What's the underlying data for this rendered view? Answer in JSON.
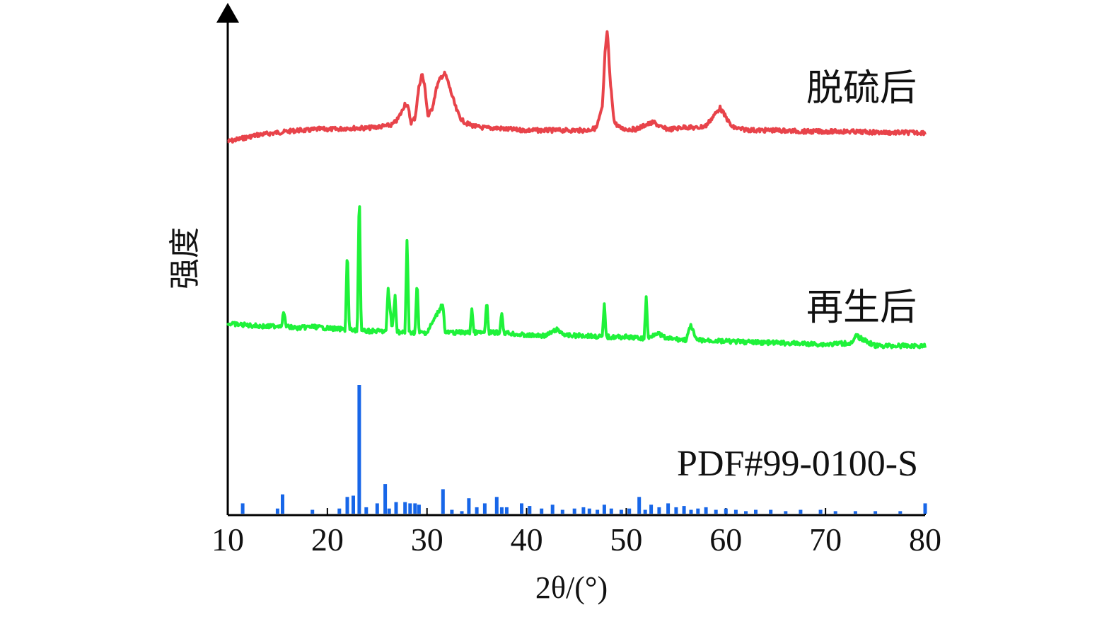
{
  "chart_data": {
    "type": "line",
    "xlabel": "2θ/(°)",
    "ylabel": "强度",
    "xlim": [
      10,
      80
    ],
    "x_ticks": [
      10,
      20,
      30,
      40,
      50,
      60,
      70,
      80
    ],
    "grid": false,
    "legend": "none",
    "series": [
      {
        "name": "脱硫后",
        "color": "#e8434a",
        "style": "line",
        "x": [
          10,
          11,
          12,
          13,
          14,
          15,
          16,
          17,
          18,
          19,
          20,
          21,
          22,
          23,
          24,
          25,
          26,
          26.5,
          27,
          27.5,
          27.8,
          28.1,
          28.4,
          28.8,
          29.2,
          29.5,
          29.8,
          30.1,
          30.5,
          31,
          31.4,
          31.8,
          32.1,
          32.5,
          33,
          33.5,
          34,
          35,
          36,
          37,
          38,
          40,
          42,
          44,
          46,
          47,
          47.6,
          47.9,
          48.1,
          48.4,
          48.8,
          49.4,
          50,
          51,
          52,
          52.8,
          53.6,
          54.5,
          56,
          57,
          58,
          58.8,
          59.4,
          59.9,
          60.6,
          61.5,
          63,
          65,
          68,
          72,
          76,
          80
        ],
        "y": [
          0.03,
          0.05,
          0.07,
          0.09,
          0.1,
          0.11,
          0.12,
          0.13,
          0.13,
          0.14,
          0.14,
          0.14,
          0.15,
          0.15,
          0.15,
          0.16,
          0.17,
          0.18,
          0.22,
          0.3,
          0.37,
          0.33,
          0.2,
          0.24,
          0.52,
          0.63,
          0.5,
          0.25,
          0.32,
          0.52,
          0.6,
          0.63,
          0.56,
          0.44,
          0.3,
          0.22,
          0.19,
          0.16,
          0.15,
          0.15,
          0.14,
          0.13,
          0.13,
          0.13,
          0.13,
          0.15,
          0.33,
          0.86,
          1.0,
          0.55,
          0.2,
          0.15,
          0.14,
          0.14,
          0.18,
          0.2,
          0.15,
          0.14,
          0.16,
          0.15,
          0.17,
          0.26,
          0.33,
          0.26,
          0.16,
          0.14,
          0.13,
          0.13,
          0.12,
          0.12,
          0.11,
          0.11
        ]
      },
      {
        "name": "再生后",
        "color": "#1ff23a",
        "style": "line",
        "x": [
          10,
          12,
          14,
          15.4,
          15.6,
          15.9,
          17,
          18.5,
          20,
          21.8,
          22,
          22.2,
          23,
          23.2,
          23.4,
          23.6,
          25,
          25.9,
          26.1,
          26.5,
          26.8,
          27,
          27.3,
          27.8,
          28,
          28.2,
          28.8,
          29,
          29.2,
          30,
          31.6,
          31.8,
          32,
          33.5,
          34.3,
          34.5,
          34.7,
          35.8,
          36,
          36.2,
          37.3,
          37.5,
          37.7,
          40,
          42,
          43,
          44,
          46,
          47.6,
          47.8,
          48,
          50,
          51.8,
          52,
          52.2,
          53,
          54,
          56,
          56.5,
          57,
          60,
          65,
          70,
          72.8,
          73,
          75,
          80
        ],
        "y": [
          0.06,
          0.05,
          0.04,
          0.05,
          0.14,
          0.04,
          0.03,
          0.04,
          0.03,
          0.02,
          0.58,
          0.02,
          0.01,
          1.0,
          0.01,
          0.01,
          0.01,
          0.01,
          0.3,
          0.02,
          0.25,
          0.01,
          0.0,
          0.0,
          0.66,
          0.0,
          0.0,
          0.35,
          0.0,
          0.0,
          0.2,
          0.0,
          0.0,
          0.0,
          0.0,
          0.17,
          0.0,
          0.0,
          0.22,
          0.0,
          0.0,
          0.15,
          0.0,
          -0.02,
          -0.02,
          0.02,
          -0.02,
          -0.02,
          -0.03,
          0.2,
          -0.03,
          -0.03,
          -0.04,
          0.25,
          -0.04,
          0.0,
          -0.04,
          -0.05,
          0.05,
          -0.05,
          -0.06,
          -0.07,
          -0.08,
          -0.07,
          -0.02,
          -0.09,
          -0.09
        ]
      },
      {
        "name": "PDF#99-0100-S",
        "color": "#1766e8",
        "style": "stick",
        "x": [
          11.5,
          15,
          15.5,
          18.5,
          21.2,
          22,
          22.6,
          23.2,
          23.9,
          25,
          25.8,
          26.2,
          26.9,
          27.8,
          28.3,
          28.8,
          29.2,
          31.6,
          32.5,
          33.5,
          34.2,
          35,
          35.8,
          37,
          37.5,
          38,
          39.5,
          40.3,
          41.5,
          42.6,
          43.6,
          44.8,
          45.7,
          46.3,
          47.1,
          47.8,
          48.5,
          49.5,
          50.3,
          51.3,
          51.9,
          52.5,
          53.3,
          54.2,
          55,
          55.8,
          56.5,
          57.2,
          58,
          59,
          60,
          61,
          62,
          63,
          64.5,
          66,
          67.5,
          69.5,
          71,
          73,
          75,
          77.5,
          80
        ],
        "y": [
          0.08,
          0.04,
          0.15,
          0.03,
          0.04,
          0.13,
          0.14,
          1.0,
          0.05,
          0.08,
          0.23,
          0.04,
          0.09,
          0.09,
          0.08,
          0.08,
          0.07,
          0.19,
          0.03,
          0.02,
          0.12,
          0.05,
          0.08,
          0.13,
          0.05,
          0.05,
          0.08,
          0.06,
          0.04,
          0.07,
          0.03,
          0.04,
          0.05,
          0.04,
          0.03,
          0.07,
          0.04,
          0.03,
          0.04,
          0.13,
          0.03,
          0.07,
          0.05,
          0.08,
          0.05,
          0.06,
          0.03,
          0.04,
          0.05,
          0.03,
          0.04,
          0.03,
          0.02,
          0.03,
          0.03,
          0.02,
          0.03,
          0.03,
          0.02,
          0.02,
          0.02,
          0.02,
          0.08
        ]
      }
    ]
  }
}
